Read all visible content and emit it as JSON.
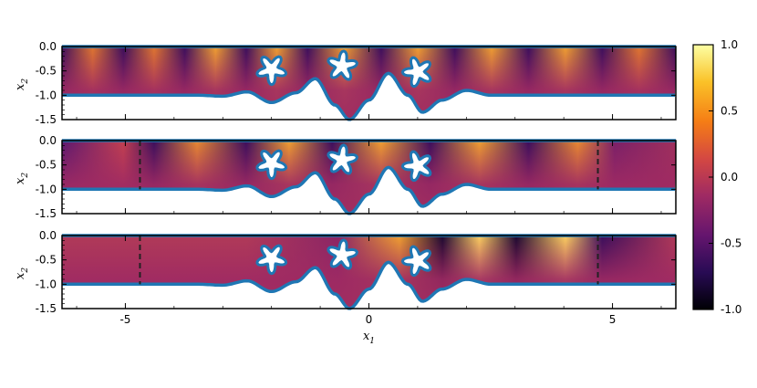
{
  "chart_data": {
    "type": "heatmap",
    "title": "",
    "xlabel": "x",
    "xlabel_subscript": "1",
    "ylabel": "x",
    "ylabel_subscript": "2",
    "xlim": [
      -6.3,
      6.3
    ],
    "ylim": [
      -1.5,
      0.0
    ],
    "xticks": [
      -5,
      0,
      5
    ],
    "xtick_labels": [
      "-5",
      "0",
      "5"
    ],
    "yticks": [
      0.0,
      -0.5,
      -1.0,
      -1.5
    ],
    "ytick_labels": [
      "0.0",
      "-0.5",
      "-1.0",
      "-1.5"
    ],
    "colorbar": {
      "range": [
        -1.0,
        1.0
      ],
      "ticks": [
        1.0,
        0.5,
        0.0,
        -0.5,
        -1.0
      ],
      "tick_labels": [
        "1.0",
        "0.5",
        "0.0",
        "-0.5",
        "-1.0"
      ],
      "colormap": "inferno",
      "colors": [
        "#000004",
        "#280b54",
        "#65156e",
        "#9f2a63",
        "#d44842",
        "#f57d15",
        "#fac228",
        "#fcffa4"
      ]
    },
    "panels": [
      {
        "name": "panel-1",
        "dashed_lines_x": []
      },
      {
        "name": "panel-2",
        "dashed_lines_x": [
          -4.7,
          4.7
        ]
      },
      {
        "name": "panel-3",
        "dashed_lines_x": [
          -4.7,
          4.7
        ]
      }
    ],
    "bottom_boundary": {
      "x": [
        -6.3,
        -3.5,
        -3.0,
        -2.5,
        -2.0,
        -1.5,
        -1.1,
        -0.7,
        -0.4,
        0.0,
        0.4,
        0.8,
        1.1,
        1.5,
        2.0,
        2.5,
        3.0,
        6.3
      ],
      "y": [
        -1.0,
        -1.0,
        -1.02,
        -0.93,
        -1.15,
        -0.95,
        -0.66,
        -1.2,
        -1.5,
        -1.1,
        -0.55,
        -1.0,
        -1.35,
        -1.1,
        -0.9,
        -1.0,
        -1.0,
        -1.0
      ]
    },
    "obstacles": [
      {
        "name": "star-obstacle-left",
        "center": [
          -2.0,
          -0.47
        ]
      },
      {
        "name": "star-obstacle-middle",
        "center": [
          -0.55,
          -0.4
        ]
      },
      {
        "name": "star-obstacle-right",
        "center": [
          1.0,
          -0.52
        ]
      }
    ],
    "boundary_color": "#1f77b4"
  }
}
